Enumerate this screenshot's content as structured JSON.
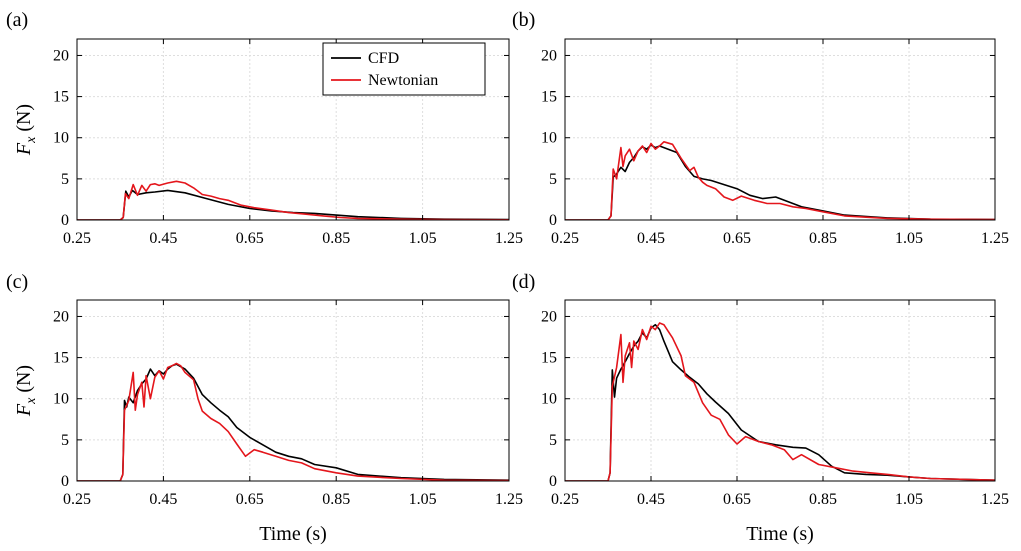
{
  "chart_data": [
    {
      "type": "line",
      "panel_label": "(a)",
      "ylabel": "F_x (N)",
      "xlabel": "",
      "xlim": [
        0.25,
        1.25
      ],
      "ylim": [
        0,
        22
      ],
      "xticks": [
        "0.25",
        "0.45",
        "0.65",
        "0.85",
        "1.05",
        "1.25"
      ],
      "yticks": [
        "0",
        "5",
        "10",
        "15",
        "20"
      ],
      "grid": true,
      "legend": "top-center",
      "series": [
        {
          "name": "CFD",
          "color": "#000000",
          "x": [
            0.25,
            0.35,
            0.357,
            0.363,
            0.37,
            0.378,
            0.39,
            0.41,
            0.43,
            0.46,
            0.5,
            0.55,
            0.6,
            0.65,
            0.7,
            0.75,
            0.8,
            0.85,
            0.9,
            1.0,
            1.1,
            1.25
          ],
          "y": [
            0,
            0,
            0.3,
            3.5,
            2.8,
            3.6,
            3.1,
            3.3,
            3.4,
            3.6,
            3.3,
            2.6,
            1.9,
            1.4,
            1.1,
            0.9,
            0.8,
            0.6,
            0.4,
            0.2,
            0.1,
            0.05
          ]
        },
        {
          "name": "Newtonian",
          "color": "#e4161c",
          "x": [
            0.25,
            0.35,
            0.357,
            0.362,
            0.37,
            0.38,
            0.39,
            0.4,
            0.41,
            0.42,
            0.43,
            0.44,
            0.46,
            0.48,
            0.5,
            0.52,
            0.54,
            0.56,
            0.58,
            0.6,
            0.63,
            0.66,
            0.7,
            0.74,
            0.78,
            0.82,
            0.86,
            0.9,
            1.0,
            1.1,
            1.25
          ],
          "y": [
            0,
            0,
            0.3,
            3.2,
            2.6,
            4.3,
            3.0,
            4.2,
            3.5,
            4.3,
            4.4,
            4.2,
            4.5,
            4.7,
            4.5,
            3.9,
            3.1,
            2.9,
            2.6,
            2.4,
            1.8,
            1.5,
            1.2,
            0.9,
            0.7,
            0.5,
            0.3,
            0.2,
            0.1,
            0.05,
            0.02
          ]
        }
      ]
    },
    {
      "type": "line",
      "panel_label": "(b)",
      "ylabel": "",
      "xlabel": "",
      "xlim": [
        0.25,
        1.25
      ],
      "ylim": [
        0,
        22
      ],
      "xticks": [
        "0.25",
        "0.45",
        "0.65",
        "0.85",
        "1.05",
        "1.25"
      ],
      "yticks": [
        "0",
        "5",
        "10",
        "15",
        "20"
      ],
      "grid": true,
      "series": [
        {
          "name": "CFD",
          "color": "#000000",
          "x": [
            0.25,
            0.35,
            0.357,
            0.362,
            0.37,
            0.38,
            0.39,
            0.4,
            0.41,
            0.42,
            0.43,
            0.44,
            0.45,
            0.46,
            0.47,
            0.49,
            0.51,
            0.53,
            0.55,
            0.57,
            0.59,
            0.62,
            0.65,
            0.68,
            0.71,
            0.74,
            0.77,
            0.8,
            0.85,
            0.9,
            1.0,
            1.1,
            1.25
          ],
          "y": [
            0,
            0,
            0.5,
            5.2,
            5.6,
            6.4,
            5.9,
            7.0,
            7.6,
            8.4,
            8.9,
            8.6,
            9.1,
            8.8,
            9.0,
            8.6,
            8.2,
            6.5,
            5.3,
            5.0,
            4.8,
            4.3,
            3.8,
            3.0,
            2.6,
            2.8,
            2.2,
            1.6,
            1.1,
            0.6,
            0.25,
            0.1,
            0.05
          ]
        },
        {
          "name": "Newtonian",
          "color": "#e4161c",
          "x": [
            0.25,
            0.35,
            0.357,
            0.362,
            0.37,
            0.38,
            0.385,
            0.39,
            0.4,
            0.41,
            0.42,
            0.43,
            0.44,
            0.45,
            0.46,
            0.47,
            0.48,
            0.5,
            0.52,
            0.54,
            0.55,
            0.56,
            0.57,
            0.58,
            0.6,
            0.62,
            0.64,
            0.66,
            0.69,
            0.72,
            0.75,
            0.78,
            0.81,
            0.85,
            0.9,
            1.0,
            1.1,
            1.25
          ],
          "y": [
            0,
            0,
            0.5,
            6.2,
            5.0,
            8.8,
            6.5,
            7.8,
            8.6,
            7.2,
            8.4,
            9.0,
            8.2,
            9.3,
            8.6,
            9.0,
            9.5,
            9.2,
            7.5,
            6.0,
            6.4,
            5.2,
            4.6,
            4.2,
            3.8,
            2.8,
            2.4,
            2.9,
            2.4,
            2.0,
            2.0,
            1.6,
            1.4,
            1.0,
            0.5,
            0.2,
            0.1,
            0.05
          ]
        }
      ]
    },
    {
      "type": "line",
      "panel_label": "(c)",
      "ylabel": "F_x (N)",
      "xlabel": "Time (s)",
      "xlim": [
        0.25,
        1.25
      ],
      "ylim": [
        0,
        22
      ],
      "xticks": [
        "0.25",
        "0.45",
        "0.65",
        "0.85",
        "1.05",
        "1.25"
      ],
      "yticks": [
        "0",
        "5",
        "10",
        "15",
        "20"
      ],
      "grid": true,
      "series": [
        {
          "name": "CFD",
          "color": "#000000",
          "x": [
            0.25,
            0.35,
            0.356,
            0.36,
            0.365,
            0.37,
            0.38,
            0.39,
            0.4,
            0.41,
            0.42,
            0.43,
            0.44,
            0.45,
            0.46,
            0.47,
            0.48,
            0.5,
            0.52,
            0.54,
            0.56,
            0.58,
            0.6,
            0.62,
            0.65,
            0.68,
            0.71,
            0.74,
            0.77,
            0.8,
            0.85,
            0.9,
            1.0,
            1.1,
            1.25
          ],
          "y": [
            0,
            0,
            0.8,
            9.8,
            9.0,
            10.2,
            9.5,
            11.0,
            11.8,
            12.4,
            13.6,
            12.8,
            13.4,
            13.0,
            13.6,
            14.0,
            14.2,
            13.6,
            12.5,
            10.5,
            9.5,
            8.6,
            7.8,
            6.5,
            5.3,
            4.4,
            3.5,
            3.0,
            2.7,
            2.0,
            1.6,
            0.8,
            0.4,
            0.2,
            0.1
          ]
        },
        {
          "name": "Newtonian",
          "color": "#e4161c",
          "x": [
            0.25,
            0.35,
            0.356,
            0.36,
            0.37,
            0.38,
            0.385,
            0.39,
            0.4,
            0.405,
            0.41,
            0.42,
            0.43,
            0.44,
            0.45,
            0.46,
            0.47,
            0.48,
            0.49,
            0.5,
            0.52,
            0.53,
            0.54,
            0.56,
            0.58,
            0.6,
            0.62,
            0.64,
            0.66,
            0.68,
            0.71,
            0.74,
            0.77,
            0.8,
            0.85,
            0.9,
            1.0,
            1.1,
            1.25
          ],
          "y": [
            0,
            0,
            0.8,
            8.6,
            9.8,
            13.2,
            8.6,
            10.5,
            12.0,
            9.0,
            12.8,
            10.0,
            12.6,
            13.4,
            12.4,
            13.8,
            14.0,
            14.3,
            14.0,
            13.2,
            12.3,
            10.0,
            8.5,
            7.6,
            7.0,
            6.0,
            4.5,
            3.0,
            3.8,
            3.5,
            3.0,
            2.5,
            2.2,
            1.5,
            1.0,
            0.6,
            0.3,
            0.1,
            0.05
          ]
        }
      ]
    },
    {
      "type": "line",
      "panel_label": "(d)",
      "ylabel": "",
      "xlabel": "Time (s)",
      "xlim": [
        0.25,
        1.25
      ],
      "ylim": [
        0,
        22
      ],
      "xticks": [
        "0.25",
        "0.45",
        "0.65",
        "0.85",
        "1.05",
        "1.25"
      ],
      "yticks": [
        "0",
        "5",
        "10",
        "15",
        "20"
      ],
      "grid": true,
      "series": [
        {
          "name": "CFD",
          "color": "#000000",
          "x": [
            0.25,
            0.35,
            0.355,
            0.36,
            0.365,
            0.37,
            0.38,
            0.39,
            0.4,
            0.41,
            0.42,
            0.43,
            0.44,
            0.45,
            0.46,
            0.47,
            0.48,
            0.5,
            0.52,
            0.54,
            0.56,
            0.58,
            0.6,
            0.63,
            0.66,
            0.7,
            0.74,
            0.78,
            0.81,
            0.84,
            0.87,
            0.9,
            0.95,
            1.0,
            1.05,
            1.1,
            1.25
          ],
          "y": [
            0,
            0,
            1.0,
            13.5,
            10.2,
            12.5,
            13.6,
            14.5,
            15.5,
            16.4,
            17.0,
            18.0,
            17.4,
            18.6,
            19.0,
            18.4,
            17.0,
            14.5,
            13.5,
            12.6,
            11.8,
            10.6,
            9.6,
            8.2,
            6.2,
            4.8,
            4.4,
            4.1,
            4.0,
            3.2,
            1.8,
            1.0,
            0.8,
            0.7,
            0.5,
            0.3,
            0.1
          ]
        },
        {
          "name": "Newtonian",
          "color": "#e4161c",
          "x": [
            0.25,
            0.35,
            0.355,
            0.36,
            0.37,
            0.38,
            0.385,
            0.39,
            0.4,
            0.405,
            0.41,
            0.42,
            0.43,
            0.44,
            0.45,
            0.46,
            0.47,
            0.48,
            0.49,
            0.5,
            0.52,
            0.53,
            0.55,
            0.57,
            0.59,
            0.61,
            0.63,
            0.65,
            0.67,
            0.7,
            0.73,
            0.76,
            0.78,
            0.8,
            0.84,
            0.88,
            0.92,
            0.96,
            1.0,
            1.05,
            1.1,
            1.25
          ],
          "y": [
            0,
            0,
            1.0,
            11.5,
            13.8,
            17.8,
            12.0,
            15.2,
            16.8,
            13.8,
            17.0,
            16.0,
            18.4,
            17.2,
            18.8,
            18.4,
            19.2,
            19.0,
            18.2,
            17.4,
            15.2,
            12.8,
            12.0,
            9.5,
            8.0,
            7.5,
            5.6,
            4.5,
            5.4,
            4.8,
            4.4,
            3.8,
            2.6,
            3.2,
            2.0,
            1.6,
            1.2,
            1.0,
            0.8,
            0.5,
            0.3,
            0.1
          ]
        }
      ]
    }
  ]
}
